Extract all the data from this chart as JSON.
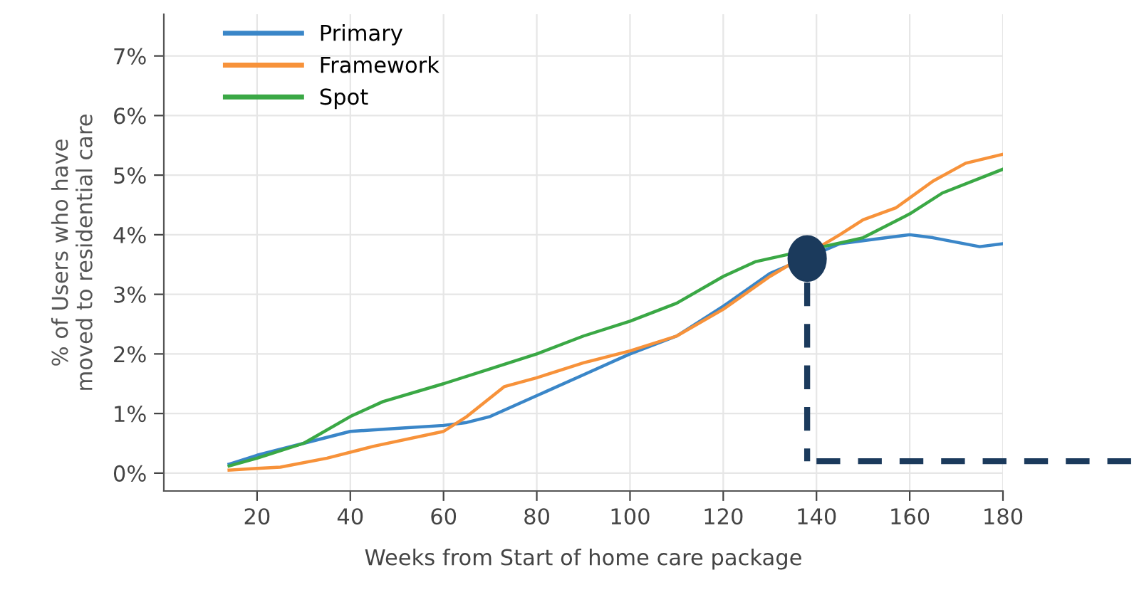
{
  "chart_data": {
    "type": "line",
    "xlabel": "Weeks from Start of home care package",
    "ylabel": "% of Users who have\nmoved to residential care",
    "xlim": [
      0,
      180
    ],
    "xticks": [
      20,
      40,
      60,
      80,
      100,
      120,
      140,
      160,
      180
    ],
    "ylim": [
      -0.3,
      7.7
    ],
    "yticks": [
      {
        "value": 0,
        "label": "0%"
      },
      {
        "value": 1,
        "label": "1%"
      },
      {
        "value": 2,
        "label": "2%"
      },
      {
        "value": 3,
        "label": "3%"
      },
      {
        "value": 4,
        "label": "4%"
      },
      {
        "value": 5,
        "label": "5%"
      },
      {
        "value": 6,
        "label": "6%"
      },
      {
        "value": 7,
        "label": "7%"
      }
    ],
    "grid": true,
    "legend": "top left",
    "marker": "none",
    "line_style": "solid",
    "series": [
      {
        "name": "Primary",
        "color": "#3a86c8",
        "x": [
          14,
          20,
          30,
          40,
          50,
          60,
          65,
          70,
          80,
          90,
          100,
          110,
          120,
          130,
          145,
          155,
          160,
          165,
          175,
          180
        ],
        "values": [
          0.15,
          0.3,
          0.5,
          0.7,
          0.75,
          0.8,
          0.85,
          0.95,
          1.3,
          1.65,
          2.0,
          2.3,
          2.8,
          3.35,
          3.85,
          3.95,
          4.0,
          3.95,
          3.8,
          3.85
        ]
      },
      {
        "name": "Framework",
        "color": "#f7923a",
        "x": [
          14,
          20,
          25,
          35,
          45,
          60,
          65,
          73,
          80,
          90,
          100,
          110,
          120,
          130,
          145,
          150,
          157,
          165,
          172,
          180
        ],
        "values": [
          0.05,
          0.08,
          0.1,
          0.25,
          0.45,
          0.7,
          0.95,
          1.45,
          1.6,
          1.85,
          2.05,
          2.3,
          2.75,
          3.3,
          4.0,
          4.25,
          4.45,
          4.9,
          5.2,
          5.35
        ]
      },
      {
        "name": "Spot",
        "color": "#3aa845",
        "x": [
          14,
          20,
          30,
          40,
          47,
          60,
          70,
          80,
          90,
          100,
          110,
          120,
          127,
          150,
          160,
          167,
          180
        ],
        "values": [
          0.12,
          0.25,
          0.5,
          0.95,
          1.2,
          1.5,
          1.75,
          2.0,
          2.3,
          2.55,
          2.85,
          3.3,
          3.55,
          3.95,
          4.35,
          4.7,
          5.1
        ]
      }
    ]
  }
}
